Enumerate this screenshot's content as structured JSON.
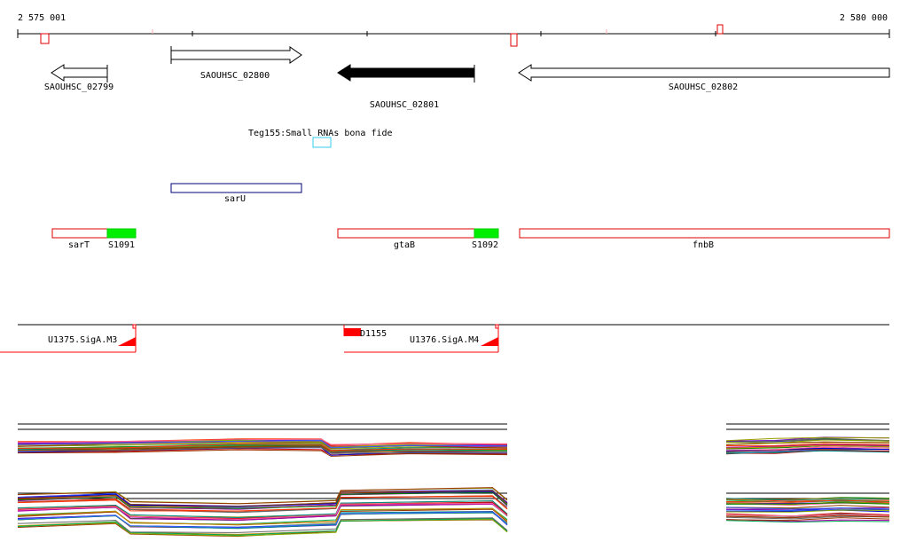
{
  "scale": {
    "start_label": "2 575 001",
    "end_label": "2 580 000"
  },
  "genes": {
    "g2799": "SAOUHSC_02799",
    "g2800": "SAOUHSC_02800",
    "g2801": "SAOUHSC_02801",
    "g2802": "SAOUHSC_02802"
  },
  "srna": {
    "label": "Teg155:Small RNAs bona fide"
  },
  "features": {
    "sarU": "sarU",
    "sarT": "sarT",
    "s1091": "S1091",
    "gtaB": "gtaB",
    "s1092": "S1092",
    "fnbB": "fnbB"
  },
  "segments": {
    "u1375": "U1375.SigA.M3",
    "d1155": "D1155",
    "u1376": "U1376.SigA.M4"
  },
  "colors": {
    "outline_red": "#e00000",
    "feature_green": "#00ee00",
    "srna_cyan": "#33ccee",
    "sarU_blue": "#000077",
    "segment_red": "#ff0000"
  }
}
